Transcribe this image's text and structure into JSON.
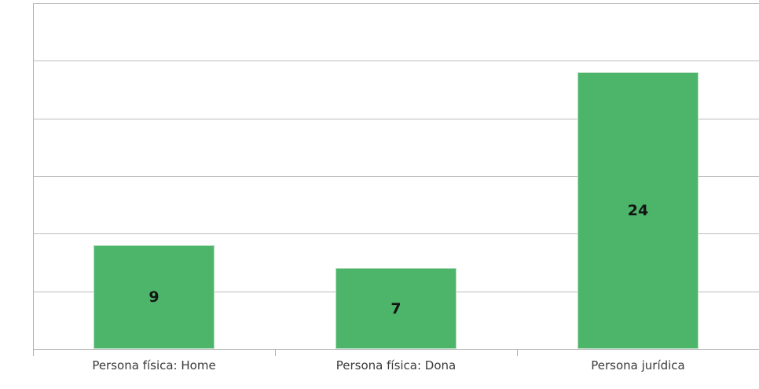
{
  "chart_data": {
    "type": "bar",
    "categories": [
      "Persona física: Home",
      "Persona física: Dona",
      "Persona jurídica"
    ],
    "values": [
      9,
      7,
      24
    ],
    "title": "",
    "xlabel": "",
    "ylabel": "",
    "ylim": [
      0,
      30
    ],
    "y_gridline_step": 5,
    "grid": true,
    "y_tick_labels_visible": false,
    "legend": "none",
    "value_label_position": "centered-inside-bar",
    "bar_width_fraction": 0.5
  },
  "colors": {
    "background": "#ffffff",
    "bar_fill": "#4cb569",
    "bar_border": "#b5ddc0",
    "gridline": "#bdbdbd",
    "axis_line": "#b0b0b0",
    "category_label": "#3a3a3a",
    "value_label": "#141414"
  }
}
